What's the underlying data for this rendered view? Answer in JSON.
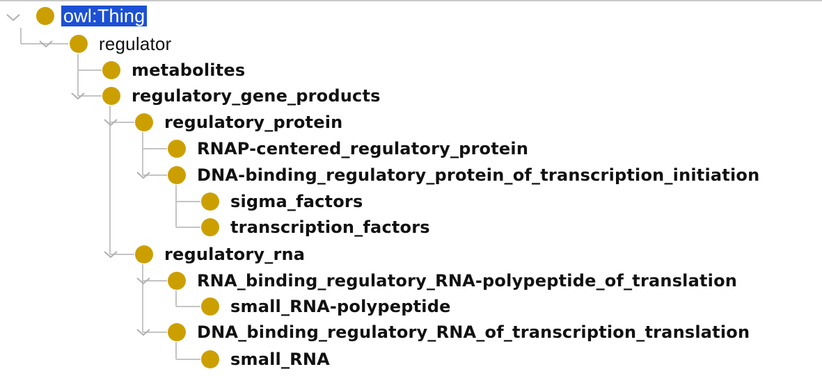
{
  "tree": {
    "root": {
      "label": "owl:Thing",
      "icon": "class-icon",
      "selected": true
    },
    "regulator": {
      "label": "regulator"
    },
    "metabolites": {
      "label": "metabolites"
    },
    "regulatory_gene_products": {
      "label": "regulatory_gene_products"
    },
    "regulatory_protein": {
      "label": "regulatory_protein"
    },
    "rnap_centered": {
      "label": "RNAP-centered_regulatory_protein"
    },
    "dna_binding_protein": {
      "label": "DNA-binding_regulatory_protein_of_transcription_initiation"
    },
    "sigma_factors": {
      "label": "sigma_factors"
    },
    "transcription_factors": {
      "label": "transcription_factors"
    },
    "regulatory_rna": {
      "label": "regulatory_rna"
    },
    "rna_binding_translation": {
      "label": "RNA_binding_regulatory_RNA-polypeptide_of_translation"
    },
    "small_rna_polypeptide": {
      "label": "small_RNA-polypeptide"
    },
    "dna_binding_rna": {
      "label": "DNA_binding_regulatory_RNA_of_transcription_translation"
    },
    "small_rna": {
      "label": "small_RNA"
    }
  },
  "colors": {
    "class_icon": "#cc9f00",
    "selection": "#1c50d4",
    "tree_line": "#c4c4c4"
  }
}
